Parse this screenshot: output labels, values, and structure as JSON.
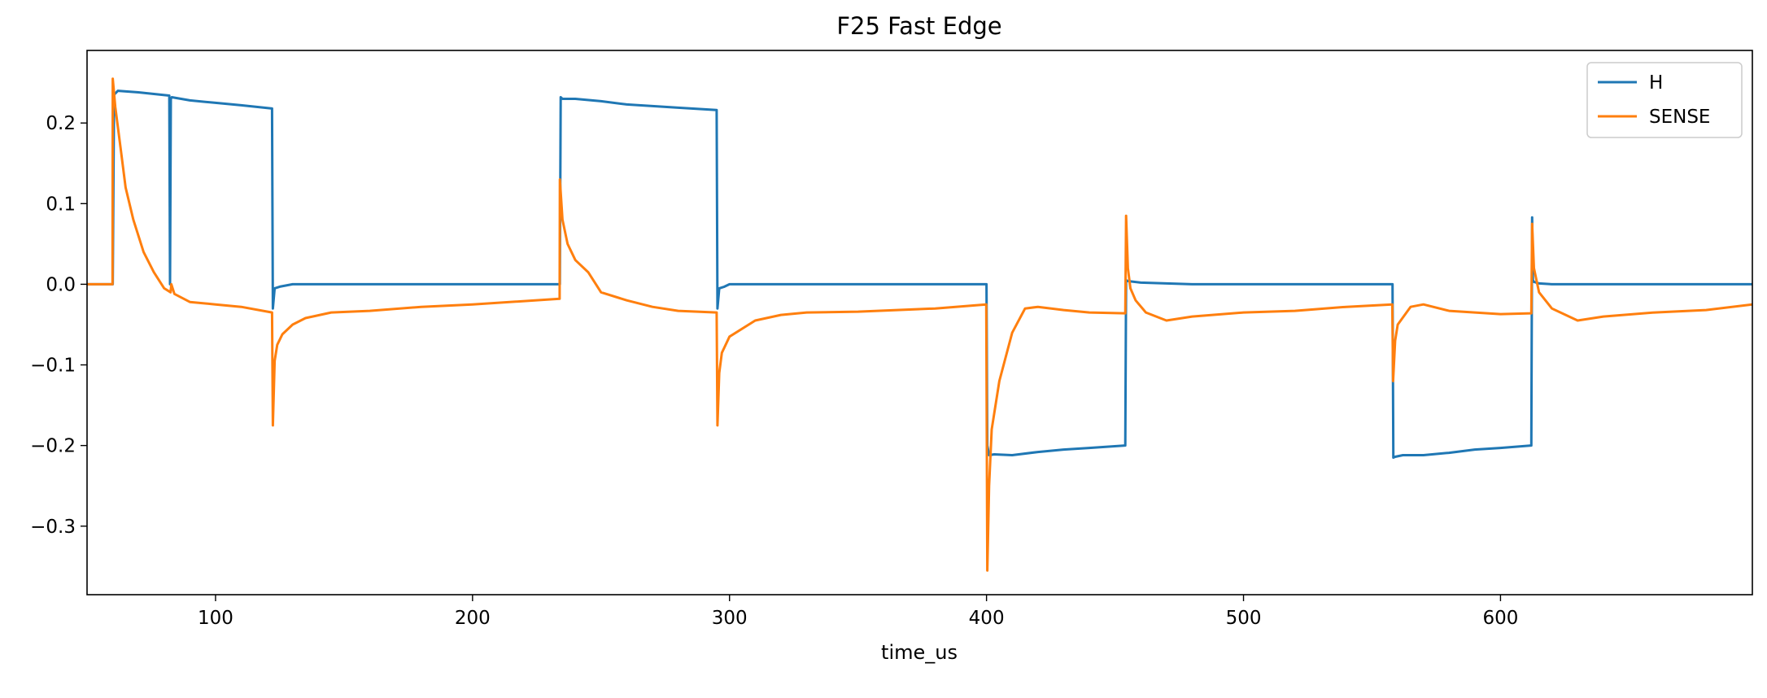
{
  "chart_data": {
    "type": "line",
    "title": "F25 Fast Edge",
    "xlabel": "time_us",
    "ylabel": "",
    "xlim": [
      50,
      698
    ],
    "ylim": [
      -0.385,
      0.29
    ],
    "xticks": [
      100,
      200,
      300,
      400,
      500,
      600
    ],
    "xtick_labels": [
      "100",
      "200",
      "300",
      "400",
      "500",
      "600"
    ],
    "yticks": [
      -0.3,
      -0.2,
      -0.1,
      0.0,
      0.1,
      0.2
    ],
    "ytick_labels": [
      "−0.3",
      "−0.2",
      "−0.1",
      "0.0",
      "0.1",
      "0.2"
    ],
    "grid": false,
    "legend_position": "top-right",
    "series": [
      {
        "name": "H",
        "color": "#1f77b4",
        "x": [
          50,
          60,
          60.5,
          62,
          70,
          82,
          82.3,
          82.6,
          83,
          90,
          100,
          110,
          122,
          122.3,
          123,
          125,
          130,
          150,
          200,
          234,
          234.3,
          235,
          240,
          250,
          260,
          270,
          280,
          295,
          295.3,
          296,
          298,
          300,
          320,
          350,
          400,
          400.3,
          401,
          403,
          410,
          420,
          430,
          440,
          454,
          454.3,
          455,
          460,
          480,
          500,
          520,
          540,
          558,
          558.3,
          559,
          562,
          570,
          580,
          590,
          600,
          612,
          612.3,
          612.6,
          613,
          615,
          620,
          650,
          698
        ],
        "y": [
          0.0,
          0.0,
          0.235,
          0.24,
          0.238,
          0.234,
          0.0,
          0.23,
          0.232,
          0.228,
          0.225,
          0.222,
          0.218,
          -0.03,
          -0.005,
          -0.003,
          0.0,
          0.0,
          0.0,
          0.0,
          0.232,
          0.23,
          0.23,
          0.227,
          0.223,
          0.221,
          0.219,
          0.216,
          -0.03,
          -0.005,
          -0.003,
          0.0,
          0.0,
          0.0,
          0.0,
          -0.2,
          -0.212,
          -0.211,
          -0.212,
          -0.208,
          -0.205,
          -0.203,
          -0.2,
          0.005,
          0.004,
          0.002,
          0.0,
          0.0,
          0.0,
          0.0,
          0.0,
          -0.215,
          -0.214,
          -0.212,
          -0.212,
          -0.209,
          -0.205,
          -0.203,
          -0.2,
          0.083,
          0.005,
          0.003,
          0.001,
          0.0,
          0.0,
          0.0
        ]
      },
      {
        "name": "SENSE",
        "color": "#ff7f0e",
        "x": [
          50,
          59.9,
          60,
          61,
          63,
          65,
          68,
          72,
          76,
          80,
          82.5,
          82.8,
          84,
          90,
          100,
          110,
          122,
          122.3,
          123,
          124,
          126,
          130,
          135,
          145,
          160,
          180,
          200,
          233.9,
          234,
          235,
          237,
          240,
          245,
          250,
          260,
          270,
          280,
          295,
          295.3,
          296,
          297,
          300,
          310,
          320,
          330,
          350,
          380,
          399.9,
          400.3,
          401,
          402,
          405,
          410,
          415,
          420,
          430,
          440,
          454,
          454.3,
          455,
          456,
          458,
          462,
          470,
          480,
          500,
          520,
          540,
          557.9,
          558.2,
          559,
          560,
          565,
          570,
          580,
          590,
          600,
          612,
          612.3,
          613,
          615,
          620,
          630,
          640,
          660,
          680,
          698
        ],
        "y": [
          0.0,
          0.0,
          0.255,
          0.22,
          0.17,
          0.12,
          0.08,
          0.04,
          0.015,
          -0.005,
          -0.01,
          0.0,
          -0.012,
          -0.022,
          -0.025,
          -0.028,
          -0.035,
          -0.175,
          -0.095,
          -0.075,
          -0.062,
          -0.05,
          -0.042,
          -0.035,
          -0.033,
          -0.028,
          -0.025,
          -0.018,
          0.13,
          0.08,
          0.05,
          0.03,
          0.015,
          -0.01,
          -0.02,
          -0.028,
          -0.033,
          -0.035,
          -0.175,
          -0.11,
          -0.085,
          -0.065,
          -0.045,
          -0.038,
          -0.035,
          -0.034,
          -0.03,
          -0.025,
          -0.355,
          -0.25,
          -0.18,
          -0.12,
          -0.06,
          -0.03,
          -0.028,
          -0.032,
          -0.035,
          -0.036,
          0.085,
          0.02,
          -0.005,
          -0.02,
          -0.035,
          -0.045,
          -0.04,
          -0.035,
          -0.033,
          -0.028,
          -0.025,
          -0.12,
          -0.07,
          -0.05,
          -0.028,
          -0.025,
          -0.033,
          -0.035,
          -0.037,
          -0.036,
          0.075,
          0.02,
          -0.01,
          -0.03,
          -0.045,
          -0.04,
          -0.035,
          -0.032,
          -0.025
        ]
      }
    ]
  }
}
